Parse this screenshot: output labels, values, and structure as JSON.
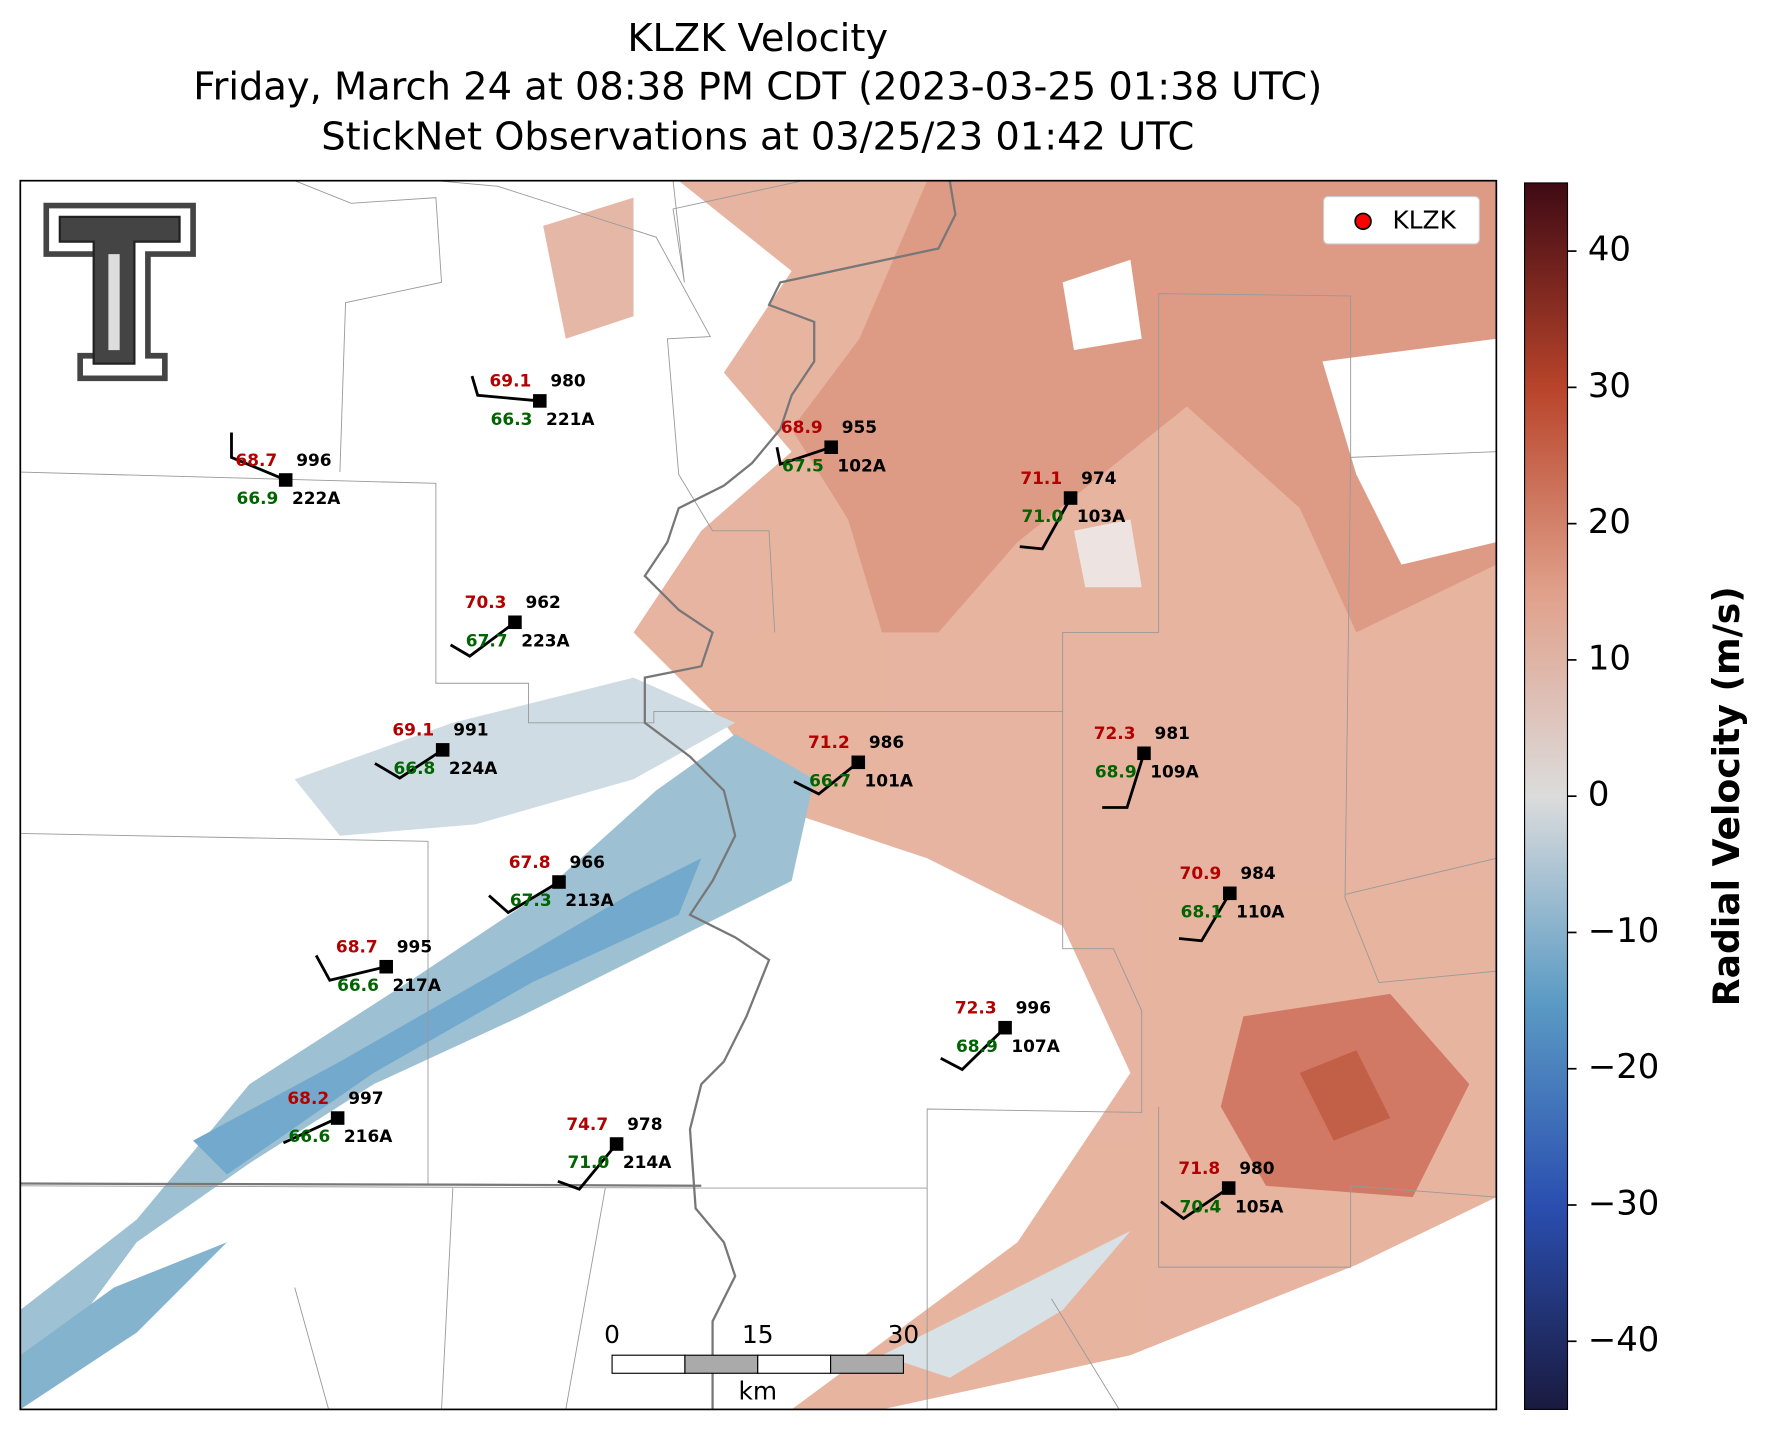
{
  "title": [
    "KLZK Velocity",
    "Friday, March 24 at 08:38 PM CDT (2023-03-25 01:38 UTC)",
    "StickNet Observations at 03/25/23 01:42 UTC"
  ],
  "legend": {
    "label": "KLZK",
    "color": "#ff0000"
  },
  "stations": [
    {
      "id": "221A",
      "temperature": "69.1",
      "dewpoint": "66.3",
      "pressure": "980"
    },
    {
      "id": "222A",
      "temperature": "68.7",
      "dewpoint": "66.9",
      "pressure": "996"
    },
    {
      "id": "102A",
      "temperature": "68.9",
      "dewpoint": "67.5",
      "pressure": "955"
    },
    {
      "id": "103A",
      "temperature": "71.1",
      "dewpoint": "71.0",
      "pressure": "974"
    },
    {
      "id": "223A",
      "temperature": "70.3",
      "dewpoint": "67.7",
      "pressure": "962"
    },
    {
      "id": "224A",
      "temperature": "69.1",
      "dewpoint": "66.8",
      "pressure": "991"
    },
    {
      "id": "101A",
      "temperature": "71.2",
      "dewpoint": "66.7",
      "pressure": "986"
    },
    {
      "id": "109A",
      "temperature": "72.3",
      "dewpoint": "68.9",
      "pressure": "981"
    },
    {
      "id": "213A",
      "temperature": "67.8",
      "dewpoint": "67.3",
      "pressure": "966"
    },
    {
      "id": "110A",
      "temperature": "70.9",
      "dewpoint": "68.1",
      "pressure": "984"
    },
    {
      "id": "217A",
      "temperature": "68.7",
      "dewpoint": "66.6",
      "pressure": "995"
    },
    {
      "id": "107A",
      "temperature": "72.3",
      "dewpoint": "68.9",
      "pressure": "996"
    },
    {
      "id": "216A",
      "temperature": "68.2",
      "dewpoint": "66.6",
      "pressure": "997"
    },
    {
      "id": "214A",
      "temperature": "74.7",
      "dewpoint": "71.0",
      "pressure": "978"
    },
    {
      "id": "105A",
      "temperature": "71.8",
      "dewpoint": "70.4",
      "pressure": "980"
    }
  ],
  "colorbar": {
    "label": "Radial Velocity (m/s)",
    "lim": [
      -45,
      45
    ],
    "colors": [
      "#1a1a3f",
      "#2a4fb0",
      "#5b9bc4",
      "#dcdcdc",
      "#e0a08a",
      "#b8442a",
      "#3f0a14"
    ],
    "ticks": [
      {
        "value": -40,
        "label": "−40"
      },
      {
        "value": -30,
        "label": "−30"
      },
      {
        "value": -20,
        "label": "−20"
      },
      {
        "value": -10,
        "label": "−10"
      },
      0,
      10,
      20,
      30,
      40
    ]
  },
  "scale_bar": {
    "ticks": [
      0,
      15,
      30
    ],
    "unit": "km"
  }
}
